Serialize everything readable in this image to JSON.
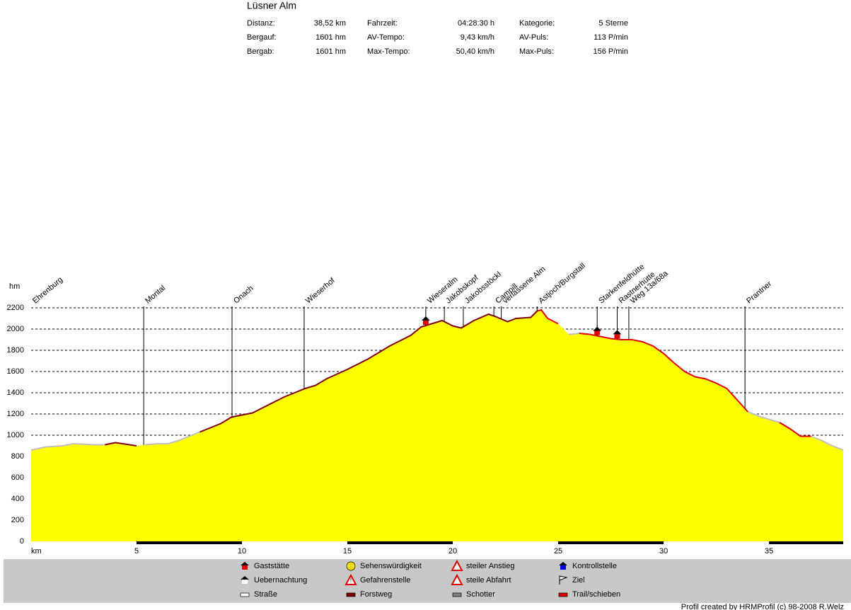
{
  "chart_data": {
    "type": "elevation-profile",
    "title": "Lüsner Alm",
    "stats": [
      [
        {
          "label": "Distanz:",
          "value": "38,52 km"
        },
        {
          "label": "Fahrzeit:",
          "value": "04:28:30 h"
        },
        {
          "label": "Kategorie:",
          "value": "5 Sterne"
        }
      ],
      [
        {
          "label": "Bergauf:",
          "value": "1601 hm"
        },
        {
          "label": "AV-Tempo:",
          "value": "9,43 km/h"
        },
        {
          "label": "AV-Puls:",
          "value": "113 P/min"
        }
      ],
      [
        {
          "label": "Bergab:",
          "value": "1601 hm"
        },
        {
          "label": "Max-Tempo:",
          "value": "50,40 km/h"
        },
        {
          "label": "Max-Puls:",
          "value": "156 P/min"
        }
      ]
    ],
    "x_label": "km",
    "y_label": "hm",
    "xlim": [
      0,
      38.52
    ],
    "ylim": [
      0,
      2200
    ],
    "xticks": [
      5,
      10,
      15,
      20,
      25,
      30,
      35
    ],
    "yticks": [
      0,
      200,
      400,
      600,
      800,
      1000,
      1200,
      1400,
      1600,
      1800,
      2000,
      2200
    ],
    "grid": true,
    "fill_color": "#ffff00",
    "x": [
      0,
      0.7,
      1.5,
      2,
      3,
      3.5,
      4,
      4.5,
      5,
      5.4,
      6,
      6.5,
      7,
      7.5,
      8,
      9,
      9.5,
      10,
      10.5,
      11,
      11.5,
      12,
      12.5,
      13,
      13.5,
      14,
      15,
      16,
      17,
      18,
      18.5,
      19,
      19.5,
      20,
      20.4,
      21,
      21.7,
      22,
      22.6,
      23,
      23.7,
      24,
      24.2,
      24.5,
      25,
      25.5,
      26,
      26.5,
      27,
      27.5,
      28,
      28.5,
      29,
      29.5,
      30,
      30.5,
      31,
      31.5,
      32,
      32.5,
      33,
      33.5,
      34,
      34.5,
      35,
      35.5,
      36,
      36.5,
      37,
      37.5,
      38,
      38.52
    ],
    "values": [
      860,
      890,
      900,
      920,
      910,
      910,
      930,
      915,
      900,
      910,
      920,
      920,
      950,
      990,
      1030,
      1110,
      1170,
      1190,
      1210,
      1260,
      1310,
      1360,
      1400,
      1440,
      1470,
      1530,
      1620,
      1720,
      1840,
      1940,
      2020,
      2050,
      2080,
      2030,
      2010,
      2080,
      2140,
      2120,
      2070,
      2100,
      2110,
      2170,
      2180,
      2100,
      2050,
      1950,
      1960,
      1950,
      1930,
      1910,
      1900,
      1900,
      1880,
      1840,
      1770,
      1680,
      1600,
      1550,
      1530,
      1490,
      1440,
      1330,
      1220,
      1180,
      1150,
      1120,
      1060,
      990,
      990,
      950,
      900,
      860
    ],
    "surfaces": [
      {
        "start": 0,
        "end": 3.5,
        "color": "#c0c0c0"
      },
      {
        "start": 3.5,
        "end": 5.3,
        "color": "#800000"
      },
      {
        "start": 5.3,
        "end": 8,
        "color": "#c0c0c0"
      },
      {
        "start": 8,
        "end": 24,
        "color": "#800000"
      },
      {
        "start": 24,
        "end": 25.3,
        "color": "#e00000"
      },
      {
        "start": 25.3,
        "end": 26,
        "color": "#c0c0c0"
      },
      {
        "start": 26,
        "end": 34,
        "color": "#e00000"
      },
      {
        "start": 34,
        "end": 35.5,
        "color": "#c0c0c0"
      },
      {
        "start": 35.5,
        "end": 37,
        "color": "#e00000"
      },
      {
        "start": 37,
        "end": 38.52,
        "color": "#c0c0c0"
      }
    ],
    "waypoints": [
      {
        "label": "Ehrenburg",
        "km": 0
      },
      {
        "label": "Montal",
        "km": 5.34
      },
      {
        "label": "Onach",
        "km": 9.53
      },
      {
        "label": "Wieserhof",
        "km": 12.95
      },
      {
        "label": "Wieseralm",
        "km": 18.72,
        "hut": true
      },
      {
        "label": "Jakobskopf",
        "km": 19.6
      },
      {
        "label": "Jakobsstöckl",
        "km": 20.5
      },
      {
        "label": "Campill",
        "km": 21.95
      },
      {
        "label": "verlassene Alm",
        "km": 22.3
      },
      {
        "label": "Astjoch/Burgstall",
        "km": 24.0
      },
      {
        "label": "Starkenfeldhütte",
        "km": 26.85,
        "hut": true
      },
      {
        "label": "Rastnerhütte",
        "km": 27.8,
        "hut": true
      },
      {
        "label": "Weg 13a/68a",
        "km": 28.35
      },
      {
        "label": "Prantner",
        "km": 33.86
      }
    ],
    "legend": [
      "Gaststätte",
      "Uebernachtung",
      "Straße",
      "Sehenswürdigkeit",
      "Gefahrenstelle",
      "Forstweg",
      "steiler Anstieg",
      "steile Abfahrt",
      "Schotter",
      "Kontrollstelle",
      "Ziel",
      "Trail/schieben"
    ],
    "footer": "Profil created by HRMProfil (c) 98-2008 R.Welz"
  }
}
